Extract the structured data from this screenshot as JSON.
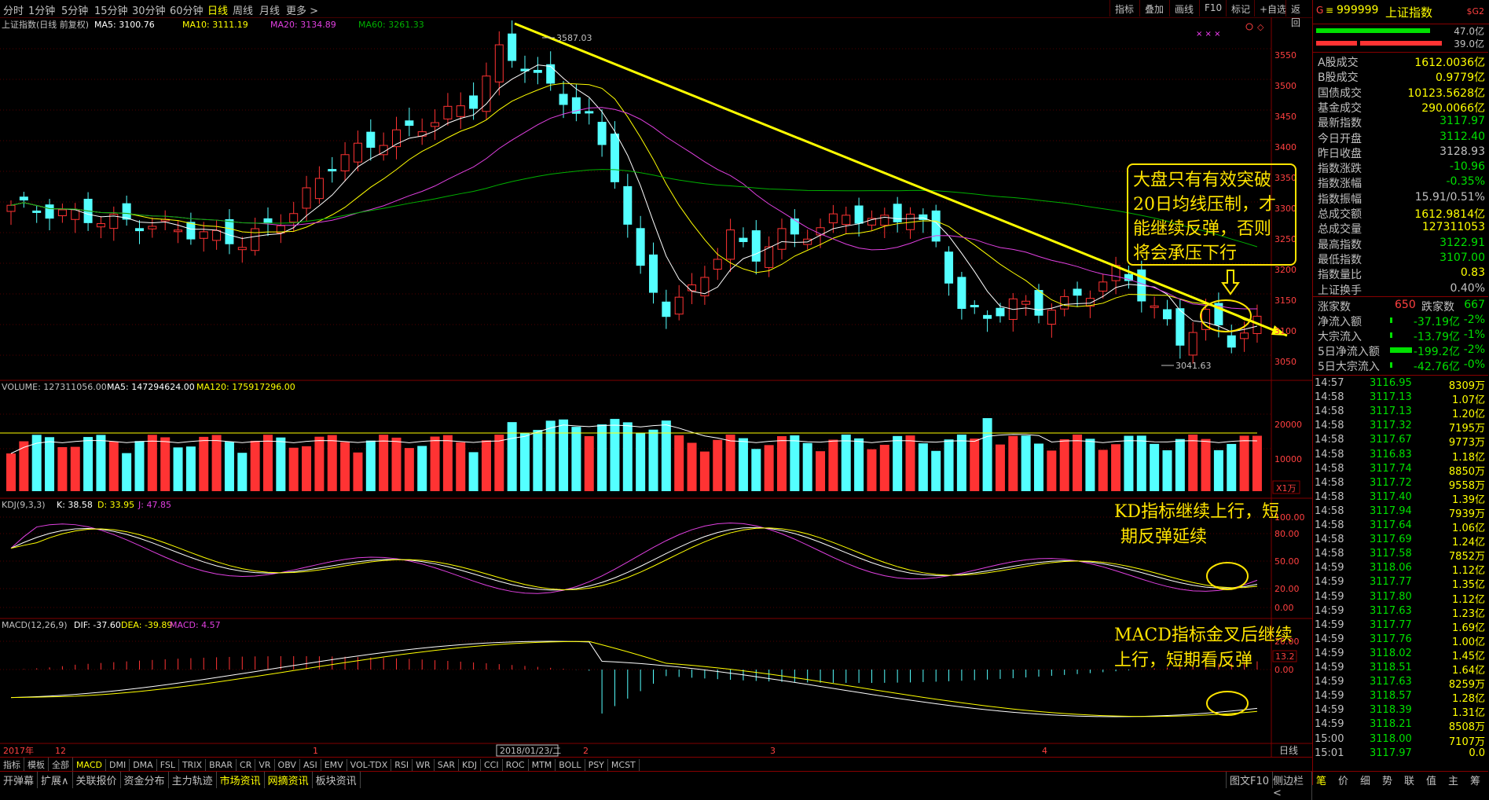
{
  "timeframes": [
    "分时",
    "1分钟",
    "5分钟",
    "15分钟",
    "30分钟",
    "60分钟",
    "日线",
    "周线",
    "月线",
    "更多 >"
  ],
  "timeframe_active": 6,
  "right_tools": [
    "指标",
    "叠加",
    "画线",
    "F10",
    "标记",
    "+自选",
    "返回"
  ],
  "chart_title": "上证指数(日线 前复权)",
  "ma_labels": {
    "ma5": "MA5: 3100.76",
    "ma10": "MA10: 3111.19",
    "ma20": "MA20: 3134.89",
    "ma60": "MA60: 3261.33"
  },
  "high_label": "3587.03",
  "low_label": "3041.63",
  "price_axis": [
    "3550",
    "3500",
    "3450",
    "3400",
    "3350",
    "3300",
    "3250",
    "3200",
    "3150",
    "3100",
    "3050"
  ],
  "volume_title": "VOLUME: 127311056.00",
  "volume_ma5": "MA5: 147294624.00",
  "volume_ma120": "MA120: 175917296.00",
  "volume_axis": [
    "20000",
    "10000"
  ],
  "volume_unit": "X1万",
  "kdj_title": "KDJ(9,3,3)",
  "kdj_k": "K: 38.58",
  "kdj_d": "D: 33.95",
  "kdj_j": "J: 47.85",
  "kdj_axis": [
    "100.00",
    "80.00",
    "50.00",
    "20.00",
    "0.00"
  ],
  "macd_title": "MACD(12,26,9)",
  "macd_dif": "DIF: -37.60",
  "macd_dea": "DEA: -39.89",
  "macd_val": "MACD: 4.57",
  "macd_axis": [
    "20.00",
    "13.2",
    "0.00"
  ],
  "date_axis": {
    "y2017": "2017年",
    "m12": "12",
    "m1": "1",
    "cursor": "2018/01/23/二",
    "m2": "2",
    "m3": "3",
    "m4": "4"
  },
  "period_label": "日线",
  "annotations": {
    "box": [
      "大盘只有有效突破",
      "20日均线压制，才",
      "能继续反弹，否则",
      "将会承压下行"
    ],
    "kd": [
      "KD指标继续上行，短",
      "期反弹延续"
    ],
    "macd": [
      "MACD指标金叉后继续",
      "上行，短期看反弹"
    ]
  },
  "index": {
    "marker": "G",
    "code": "999999",
    "name": "上证指数",
    "tag": "$G2",
    "bar1": "47.0亿",
    "bar2": "39.0亿"
  },
  "stats": [
    {
      "label": "A股成交",
      "value": "1612.0036亿",
      "color": "#ffff00"
    },
    {
      "label": "B股成交",
      "value": "0.9779亿",
      "color": "#ffff00"
    },
    {
      "label": "国债成交",
      "value": "10123.5628亿",
      "color": "#ffff00"
    },
    {
      "label": "基金成交",
      "value": "290.0066亿",
      "color": "#ffff00"
    },
    {
      "label": "最新指数",
      "value": "3117.97",
      "color": "#00e000"
    },
    {
      "label": "今日开盘",
      "value": "3112.40",
      "color": "#00e000"
    },
    {
      "label": "昨日收盘",
      "value": "3128.93",
      "color": "#c0c0c0"
    },
    {
      "label": "指数涨跌",
      "value": "-10.96",
      "color": "#00e000"
    },
    {
      "label": "指数涨幅",
      "value": "-0.35%",
      "color": "#00e000"
    },
    {
      "label": "指数振幅",
      "value": "15.91/0.51%",
      "color": "#c0c0c0"
    },
    {
      "label": "总成交额",
      "value": "1612.9814亿",
      "color": "#ffff00"
    },
    {
      "label": "总成交量",
      "value": "127311053",
      "color": "#ffff00"
    },
    {
      "label": "最高指数",
      "value": "3122.91",
      "color": "#00e000"
    },
    {
      "label": "最低指数",
      "value": "3107.00",
      "color": "#00e000"
    },
    {
      "label": "指数量比",
      "value": "0.83",
      "color": "#ffff00"
    },
    {
      "label": "上证换手",
      "value": "0.40%",
      "color": "#c0c0c0"
    }
  ],
  "updown": {
    "up_label": "涨家数",
    "up": "650",
    "down_label": "跌家数",
    "down": "667"
  },
  "flows": [
    {
      "label": "净流入额",
      "value": "-37.19亿",
      "pct": "-2%"
    },
    {
      "label": "大宗流入",
      "value": "-13.79亿",
      "pct": "-1%"
    },
    {
      "label": "5日净流入额",
      "value": "-199.2亿",
      "pct": "-2%"
    },
    {
      "label": "5日大宗流入",
      "value": "-42.76亿",
      "pct": "-0%"
    }
  ],
  "ticks": [
    [
      "14:57",
      "3116.95",
      "8309万"
    ],
    [
      "14:58",
      "3117.13",
      "1.07亿"
    ],
    [
      "14:58",
      "3117.13",
      "1.20亿"
    ],
    [
      "14:58",
      "3117.32",
      "7195万"
    ],
    [
      "14:58",
      "3117.67",
      "9773万"
    ],
    [
      "14:58",
      "3116.83",
      "1.18亿"
    ],
    [
      "14:58",
      "3117.74",
      "8850万"
    ],
    [
      "14:58",
      "3117.72",
      "9558万"
    ],
    [
      "14:58",
      "3117.40",
      "1.39亿"
    ],
    [
      "14:58",
      "3117.94",
      "7939万"
    ],
    [
      "14:58",
      "3117.64",
      "1.06亿"
    ],
    [
      "14:58",
      "3117.69",
      "1.24亿"
    ],
    [
      "14:58",
      "3117.58",
      "7852万"
    ],
    [
      "14:59",
      "3118.06",
      "1.12亿"
    ],
    [
      "14:59",
      "3117.77",
      "1.35亿"
    ],
    [
      "14:59",
      "3117.80",
      "1.12亿"
    ],
    [
      "14:59",
      "3117.63",
      "1.23亿"
    ],
    [
      "14:59",
      "3117.77",
      "1.69亿"
    ],
    [
      "14:59",
      "3117.76",
      "1.00亿"
    ],
    [
      "14:59",
      "3118.02",
      "1.45亿"
    ],
    [
      "14:59",
      "3118.51",
      "1.64亿"
    ],
    [
      "14:59",
      "3117.63",
      "8259万"
    ],
    [
      "14:59",
      "3118.57",
      "1.28亿"
    ],
    [
      "14:59",
      "3118.39",
      "1.31亿"
    ],
    [
      "14:59",
      "3118.21",
      "8508万"
    ],
    [
      "15:00",
      "3118.00",
      "7107万"
    ],
    [
      "15:01",
      "3117.97",
      "0.0"
    ]
  ],
  "indicator_tabs": [
    "指标",
    "模板",
    "全部",
    "MACD",
    "DMI",
    "DMA",
    "FSL",
    "TRIX",
    "BRAR",
    "CR",
    "VR",
    "OBV",
    "ASI",
    "EMV",
    "VOL-TDX",
    "RSI",
    "WR",
    "SAR",
    "KDJ",
    "CCI",
    "ROC",
    "MTM",
    "BOLL",
    "PSY",
    "MCST"
  ],
  "indicator_active": 3,
  "bottom_tabs": [
    "开弹幕",
    "扩展∧",
    "关联报价",
    "资金分布",
    "主力轨迹",
    "市场资讯",
    "网摘资讯",
    "板块资讯"
  ],
  "bottom_active": [
    5,
    6
  ],
  "bottom_right": [
    "图文F10",
    "侧边栏 <"
  ],
  "side_tabs": [
    "笔",
    "价",
    "细",
    "势",
    "联",
    "值",
    "主",
    "筹"
  ],
  "colors": {
    "up": "#ff3333",
    "down": "#54ffff",
    "yellow": "#ffff00",
    "ma10": "#ffffff",
    "ma20": "#e040e0",
    "ma60": "#00b000",
    "green": "#00e000"
  }
}
